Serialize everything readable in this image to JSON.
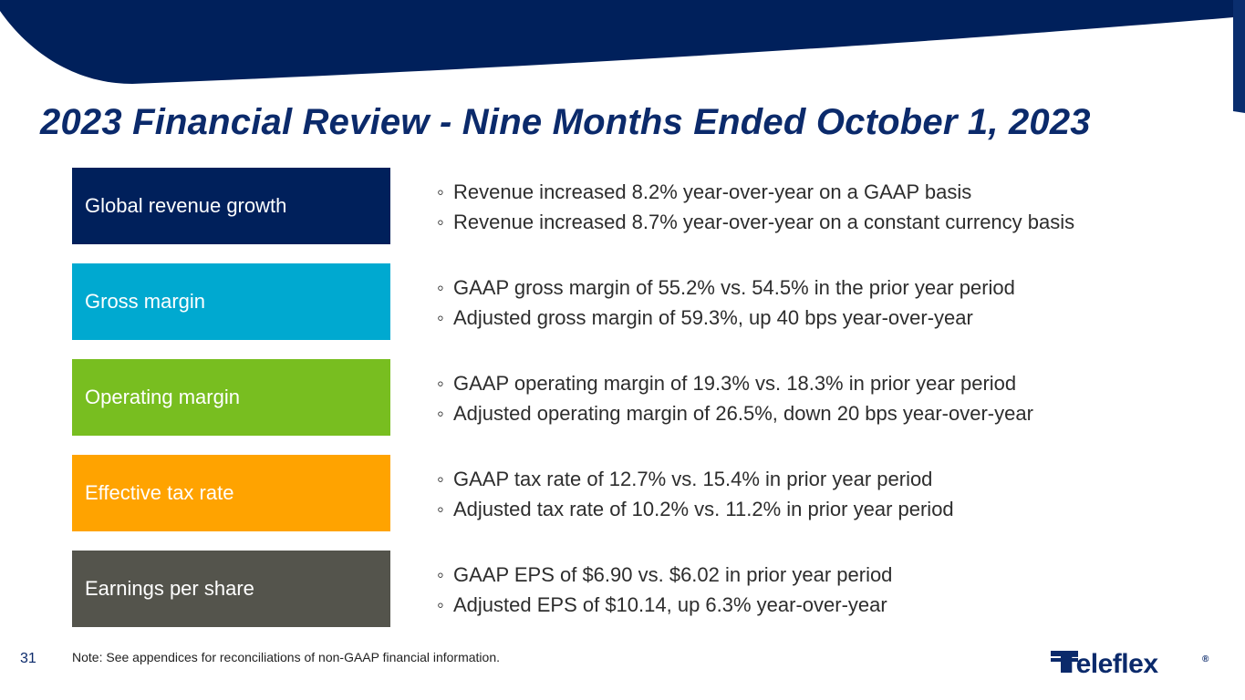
{
  "slide": {
    "title": "2023 Financial Review - Nine Months Ended October 1, 2023",
    "page_number": "31",
    "note": "Note: See appendices for reconciliations of non-GAAP financial information.",
    "logo_text": "Teleflex",
    "logo_mark": "®"
  },
  "colors": {
    "navy": "#00205b",
    "blue": "#00a9d0",
    "green": "#78be20",
    "orange": "#ffa300",
    "gray": "#54544c",
    "title": "#0b2a6b"
  },
  "rows": [
    {
      "label": "Global revenue growth",
      "color": "#00205b",
      "bullets": [
        "Revenue increased 8.2% year-over-year on a GAAP basis",
        "Revenue increased 8.7% year-over-year on a constant currency basis"
      ]
    },
    {
      "label": "Gross margin",
      "color": "#00a9d0",
      "bullets": [
        "GAAP gross margin of 55.2% vs. 54.5% in the prior year period",
        "Adjusted gross margin of 59.3%, up 40 bps year-over-year"
      ]
    },
    {
      "label": "Operating margin",
      "color": "#78be20",
      "bullets": [
        "GAAP operating margin of 19.3% vs. 18.3% in prior year period",
        "Adjusted operating margin of 26.5%, down 20 bps year-over-year"
      ]
    },
    {
      "label": "Effective tax rate",
      "color": "#ffa300",
      "bullets": [
        "GAAP tax rate of 12.7% vs. 15.4% in prior year period",
        "Adjusted tax rate of 10.2% vs. 11.2% in prior year period"
      ]
    },
    {
      "label": "Earnings per share",
      "color": "#54544c",
      "bullets": [
        "GAAP EPS of $6.90 vs. $6.02 in prior year period",
        "Adjusted EPS of $10.14, up 6.3% year-over-year"
      ]
    }
  ]
}
